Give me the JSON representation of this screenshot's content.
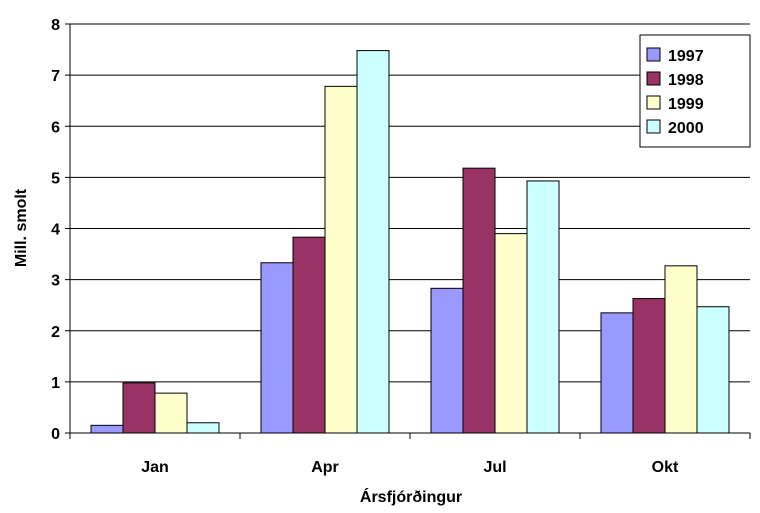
{
  "chart_data": {
    "type": "bar",
    "title": "",
    "xlabel": "Ársfjórðingur",
    "ylabel": "Mill. smolt",
    "categories": [
      "Jan",
      "Apr",
      "Jul",
      "Okt"
    ],
    "ylim": [
      0,
      8
    ],
    "yticks": [
      "0",
      "1",
      "2",
      "3",
      "4",
      "5",
      "6",
      "7",
      "8"
    ],
    "grid": "horizontal",
    "legend_position": "top-right",
    "series": [
      {
        "name": "1997",
        "color": "#9999FF",
        "values": [
          0.15,
          3.33,
          2.83,
          2.35
        ]
      },
      {
        "name": "1998",
        "color": "#993366",
        "values": [
          0.98,
          3.83,
          5.18,
          2.63
        ]
      },
      {
        "name": "1999",
        "color": "#FFFFCC",
        "values": [
          0.78,
          6.78,
          3.9,
          3.27
        ]
      },
      {
        "name": "2000",
        "color": "#CCFFFF",
        "values": [
          0.2,
          7.48,
          4.93,
          2.47
        ]
      }
    ]
  }
}
